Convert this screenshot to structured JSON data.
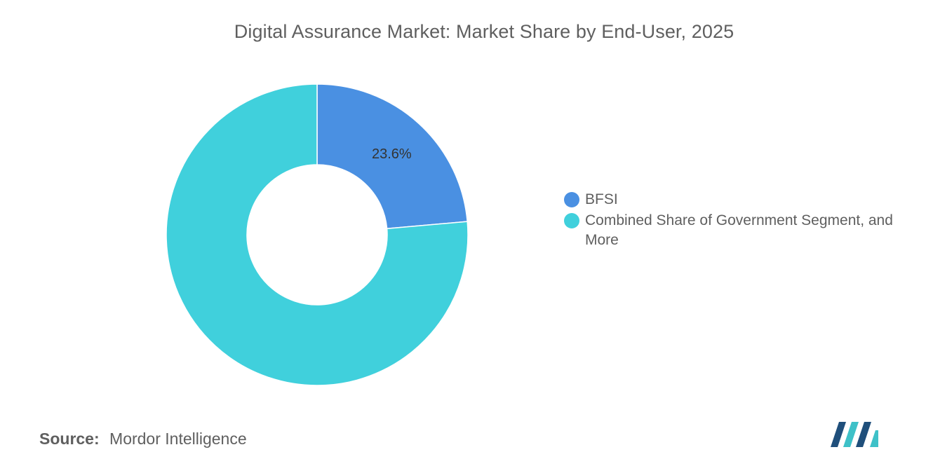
{
  "chart_data": {
    "type": "pie",
    "variant": "donut",
    "title": "Digital Assurance Market: Market Share by End-User, 2025",
    "categories": [
      "BFSI",
      "Combined Share of Government Segment, and More"
    ],
    "values": [
      23.6,
      76.4
    ],
    "data_labels": [
      "23.6%",
      ""
    ],
    "colors": [
      "#4a90e2",
      "#40d0dc"
    ],
    "legend_position": "right"
  },
  "legend": {
    "items": [
      {
        "label": "BFSI",
        "color": "#4a90e2"
      },
      {
        "label": "Combined Share of Government Segment, and More",
        "color": "#40d0dc"
      }
    ]
  },
  "source": {
    "label": "Source:",
    "value": "Mordor Intelligence"
  },
  "logo": {
    "icon": "mordor-intelligence-logo-icon",
    "colors": [
      "#1f4f7b",
      "#3ec1c8"
    ]
  }
}
